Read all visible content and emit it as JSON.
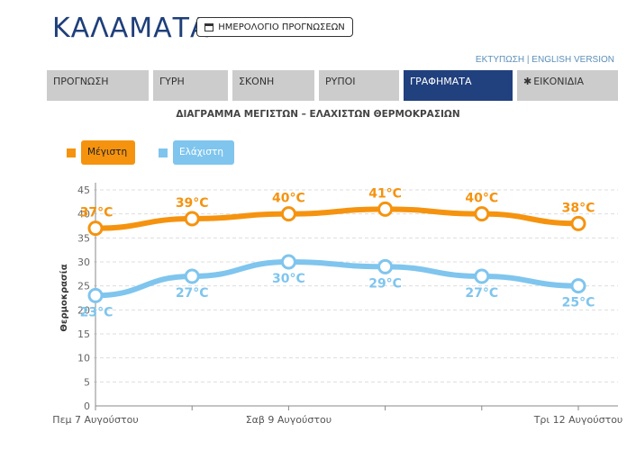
{
  "header": {
    "city": "ΚΑΛΑΜΑΤΑ",
    "calendar_button": "ΗΜΕΡΟΛΟΓΙΟ ΠΡΟΓΝΩΣΕΩΝ",
    "print_link": "ΕΚΤΥΠΩΣΗ",
    "separator": "|",
    "english_link": "ENGLISH VERSION"
  },
  "tabs": [
    {
      "label": "ΠΡΟΓΝΩΣΗ",
      "active": false
    },
    {
      "label": "ΓΥΡΗ",
      "active": false
    },
    {
      "label": "ΣΚΟΝΗ",
      "active": false
    },
    {
      "label": "ΡΥΠΟΙ",
      "active": false
    },
    {
      "label": "ΓΡΑΦΗΜΑΤΑ",
      "active": true
    },
    {
      "label": "ΕΙΚΟΝΙΔΙΑ",
      "active": false,
      "icon": "gear-icon"
    }
  ],
  "colors": {
    "max": "#f5930f",
    "min": "#7fc5ee",
    "active_tab": "#21407e",
    "tab": "#cccccc",
    "title": "#1f3f7a"
  },
  "chart_data": {
    "type": "line",
    "title": "ΔΙΑΓΡΑΜΜΑ ΜΕΓΙΣΤΩΝ – ΕΛΑΧΙΣΤΩΝ ΘΕΡΜΟΚΡΑΣΙΩΝ",
    "ylabel": "Θερμοκρασία",
    "xlabel": "",
    "ylim": [
      0,
      45
    ],
    "yticks": [
      0,
      5,
      10,
      15,
      20,
      25,
      30,
      35,
      40,
      45
    ],
    "grid": true,
    "legend_position": "top-left",
    "unit": "°C",
    "x_tick_labels": [
      {
        "index": 0,
        "label": "Πεμ 7 Αυγούστου"
      },
      {
        "index": 2,
        "label": "Σαβ 9 Αυγούστου"
      },
      {
        "index": 5,
        "label": "Τρι 12 Αυγούστου"
      }
    ],
    "series": [
      {
        "name": "Μέγιστη",
        "color": "#f5930f",
        "values": [
          37,
          39,
          40,
          41,
          40,
          38
        ],
        "labels": [
          "37°C",
          "39°C",
          "40°C",
          "41°C",
          "40°C",
          "38°C"
        ]
      },
      {
        "name": "Ελάχιστη",
        "color": "#7fc5ee",
        "values": [
          23,
          27,
          30,
          29,
          27,
          25
        ],
        "labels": [
          "23°C",
          "27°C",
          "30°C",
          "29°C",
          "27°C",
          "25°C"
        ]
      }
    ]
  }
}
